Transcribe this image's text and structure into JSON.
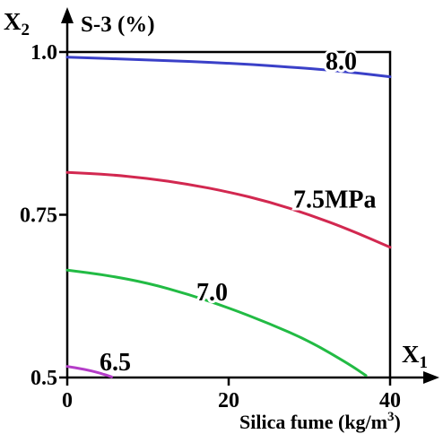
{
  "chart_data": {
    "type": "contour",
    "title": "S-3 (%)",
    "xlabel": "Silica fume (kg/m",
    "xlabel_sup": "3",
    "xlabel_tail": ")",
    "x_axis_symbol": "X",
    "x_axis_subscript": "1",
    "y_axis_symbol": "X",
    "y_axis_subscript": "2",
    "xlim": [
      0,
      40
    ],
    "ylim": [
      0.5,
      1.0
    ],
    "x_ticks": [
      0,
      20,
      40
    ],
    "x_tick_labels": [
      "0",
      "20",
      "40"
    ],
    "y_ticks": [
      0.5,
      0.75,
      1.0
    ],
    "y_tick_labels": [
      "0.5",
      "0.75",
      "1.0"
    ],
    "series": [
      {
        "level": "6.5",
        "label": "6.5",
        "color": "#b43cc8",
        "points": [
          [
            0,
            0.517
          ],
          [
            2,
            0.513
          ],
          [
            4,
            0.507
          ],
          [
            5.5,
            0.501
          ]
        ],
        "label_at": [
          4,
          0.525
        ]
      },
      {
        "level": "7.0",
        "label": "7.0",
        "color": "#22bb44",
        "points": [
          [
            0,
            0.665
          ],
          [
            5,
            0.657
          ],
          [
            10,
            0.645
          ],
          [
            15,
            0.628
          ],
          [
            20,
            0.607
          ],
          [
            25,
            0.583
          ],
          [
            30,
            0.556
          ],
          [
            35,
            0.52
          ],
          [
            37,
            0.503
          ]
        ],
        "label_at": [
          16,
          0.632
        ]
      },
      {
        "level": "7.5",
        "label": "7.5MPa",
        "color": "#d22850",
        "points": [
          [
            0,
            0.815
          ],
          [
            5,
            0.812
          ],
          [
            10,
            0.806
          ],
          [
            15,
            0.797
          ],
          [
            20,
            0.785
          ],
          [
            25,
            0.77
          ],
          [
            30,
            0.75
          ],
          [
            35,
            0.727
          ],
          [
            40,
            0.7
          ]
        ],
        "label_at": [
          28,
          0.775
        ]
      },
      {
        "level": "8.0",
        "label": "8.0",
        "color": "#3a40c8",
        "points": [
          [
            0,
            0.992
          ],
          [
            10,
            0.988
          ],
          [
            20,
            0.983
          ],
          [
            30,
            0.975
          ],
          [
            35,
            0.969
          ],
          [
            40,
            0.962
          ]
        ],
        "label_at": [
          32,
          0.987
        ]
      }
    ]
  }
}
